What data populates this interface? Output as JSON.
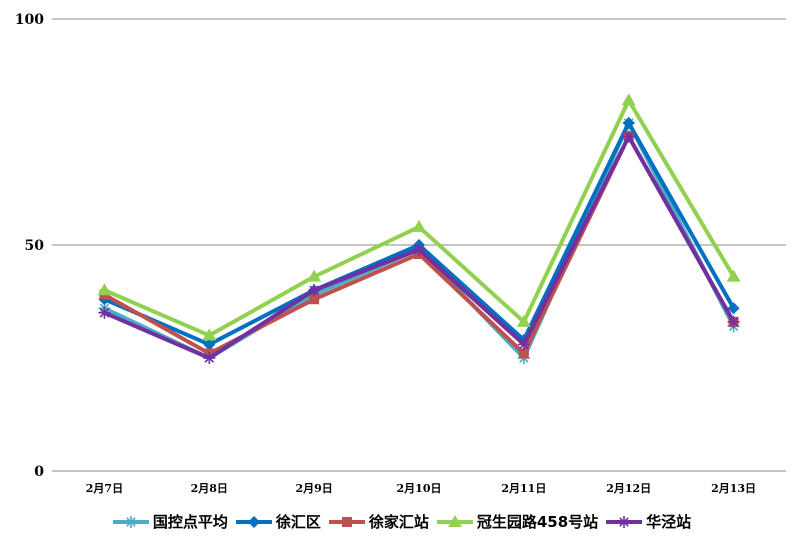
{
  "chart_data": {
    "type": "line",
    "title": "",
    "categories": [
      "2月7日",
      "2月8日",
      "2月9日",
      "2月10日",
      "2月11日",
      "2月12日",
      "2月13日"
    ],
    "ylim": [
      0,
      100
    ],
    "yticks": [
      0,
      50,
      100
    ],
    "grid": true,
    "legend_position": "bottom",
    "series": [
      {
        "name": "国控点平均",
        "color": "#4bacc6",
        "marker": "asterisk",
        "values": [
          36,
          25,
          39,
          49,
          25,
          77,
          32
        ]
      },
      {
        "name": "徐汇区",
        "color": "#0070c0",
        "marker": "diamond",
        "values": [
          38,
          28,
          40,
          50,
          29,
          77,
          36
        ]
      },
      {
        "name": "徐家汇站",
        "color": "#c0504d",
        "marker": "square",
        "values": [
          39,
          26,
          38,
          48,
          26,
          74,
          33
        ]
      },
      {
        "name": "冠生园路458号站",
        "color": "#92d050",
        "marker": "triangle",
        "values": [
          40,
          30,
          43,
          54,
          33,
          82,
          43
        ]
      },
      {
        "name": "华泾站",
        "color": "#7030a0",
        "marker": "star",
        "values": [
          35,
          25,
          40,
          49,
          28,
          74,
          33
        ]
      }
    ]
  }
}
